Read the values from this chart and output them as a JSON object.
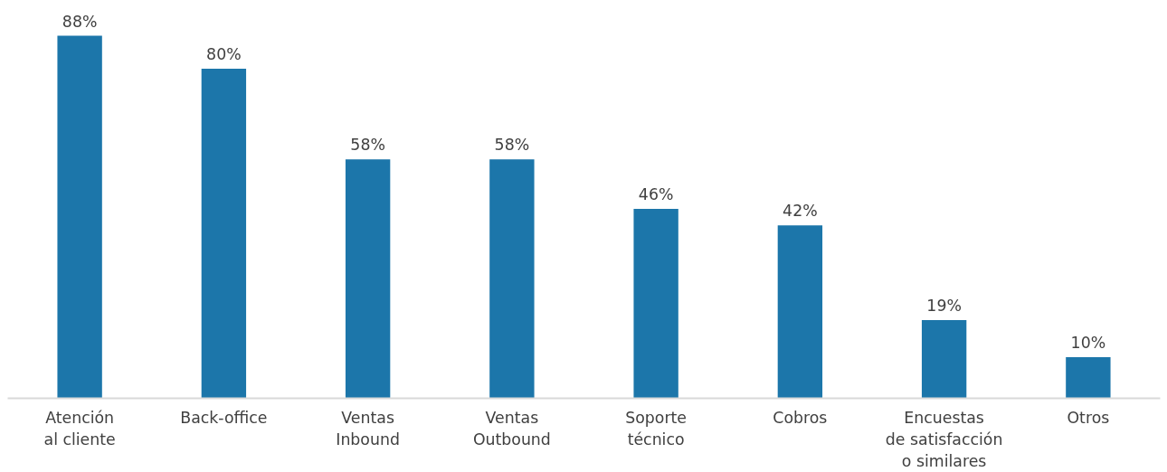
{
  "chart_data": {
    "type": "bar",
    "categories": [
      "Atención\nal cliente",
      "Back-office",
      "Ventas\nInbound",
      "Ventas\nOutbound",
      "Soporte\ntécnico",
      "Cobros",
      "Encuestas\nde satisfacción\no similares",
      "Otros"
    ],
    "values": [
      88,
      80,
      58,
      58,
      46,
      42,
      19,
      10
    ],
    "value_labels": [
      "88%",
      "80%",
      "58%",
      "58%",
      "46%",
      "42%",
      "19%",
      "10%"
    ],
    "color": "#1c76aa"
  }
}
